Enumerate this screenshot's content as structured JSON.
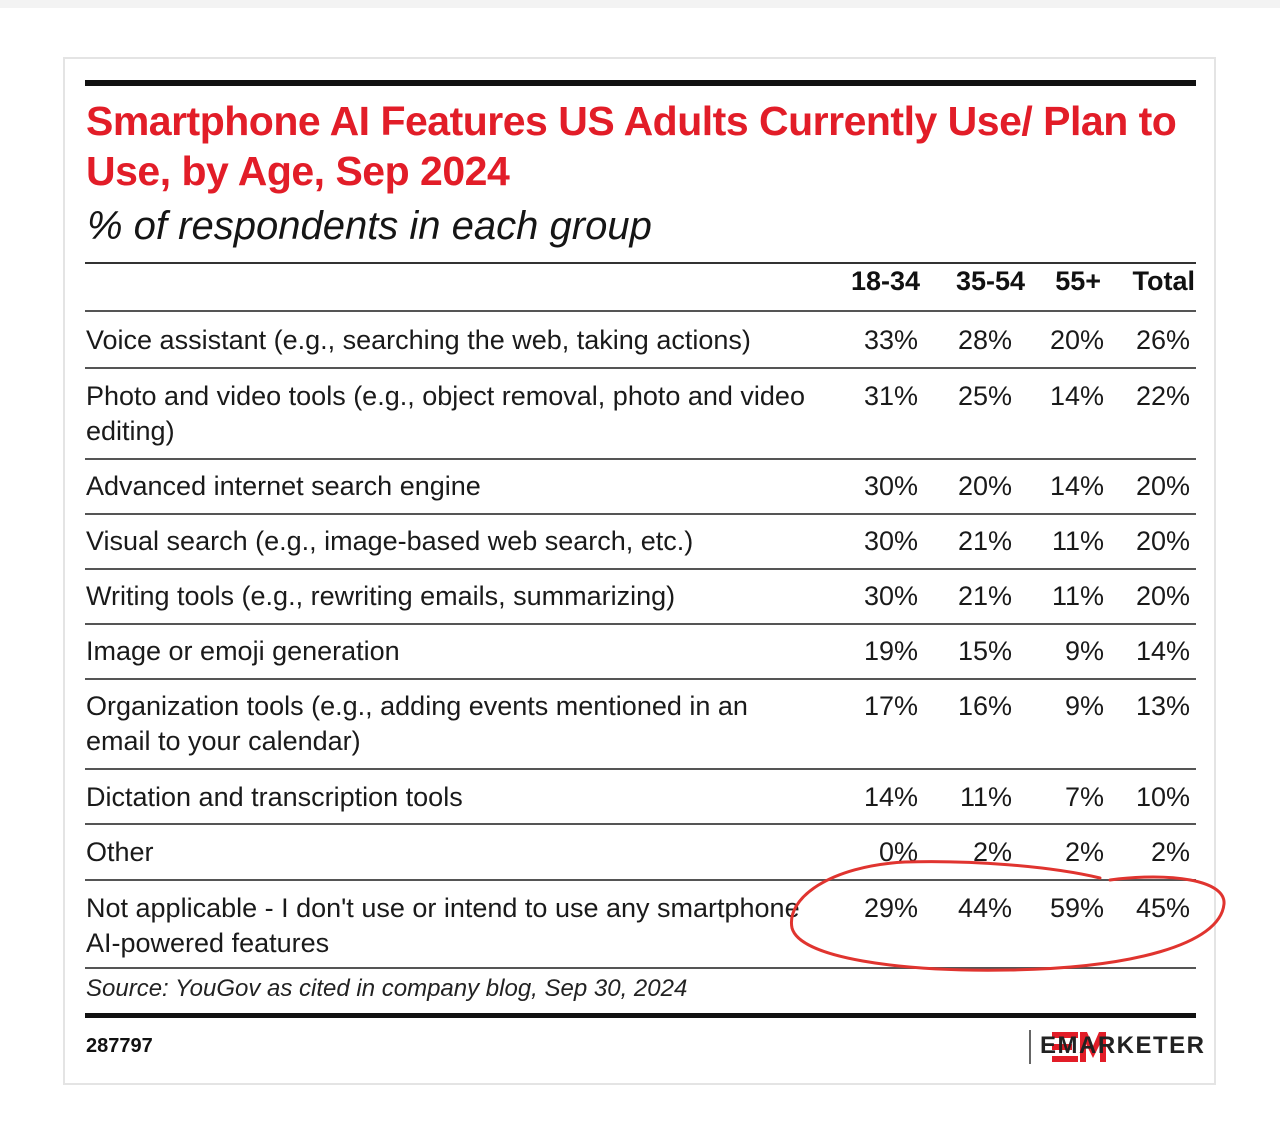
{
  "chart_data": {
    "type": "table",
    "title": "Smartphone AI Features US Adults Currently Use/ Plan to Use, by Age, Sep 2024",
    "subtitle": "% of respondents in each group",
    "columns": [
      "18-34",
      "35-54",
      "55+",
      "Total"
    ],
    "rows": [
      {
        "label": "Voice assistant (e.g., searching the web, taking actions)",
        "values": [
          "33%",
          "28%",
          "20%",
          "26%"
        ]
      },
      {
        "label": "Photo and video tools (e.g., object removal, photo and video editing)",
        "values": [
          "31%",
          "25%",
          "14%",
          "22%"
        ]
      },
      {
        "label": "Advanced internet search engine",
        "values": [
          "30%",
          "20%",
          "14%",
          "20%"
        ]
      },
      {
        "label": "Visual search (e.g., image-based web search, etc.)",
        "values": [
          "30%",
          "21%",
          "11%",
          "20%"
        ]
      },
      {
        "label": "Writing tools (e.g., rewriting emails, summarizing)",
        "values": [
          "30%",
          "21%",
          "11%",
          "20%"
        ]
      },
      {
        "label": "Image or emoji generation",
        "values": [
          "19%",
          "15%",
          "9%",
          "14%"
        ]
      },
      {
        "label": "Organization tools (e.g., adding events mentioned in an email to your calendar)",
        "values": [
          "17%",
          "16%",
          "9%",
          "13%"
        ]
      },
      {
        "label": "Dictation and transcription tools",
        "values": [
          "14%",
          "11%",
          "7%",
          "10%"
        ]
      },
      {
        "label": "Other",
        "values": [
          "0%",
          "2%",
          "2%",
          "2%"
        ]
      },
      {
        "label": "Not applicable - I don't use or intend to use any smartphone AI-powered features",
        "values": [
          "29%",
          "44%",
          "59%",
          "45%"
        ]
      }
    ],
    "source": "Source: YouGov as cited in company blog, Sep 30, 2024",
    "highlighted_row": "Not applicable - I don't use or intend to use any smartphone AI-powered features"
  },
  "footer": {
    "chart_id": "287797",
    "brand": "EMARKETER"
  },
  "colors": {
    "title": "#e21d28",
    "brand_red": "#e21d28",
    "annotation": "#e0342f",
    "rule": "#111111"
  }
}
